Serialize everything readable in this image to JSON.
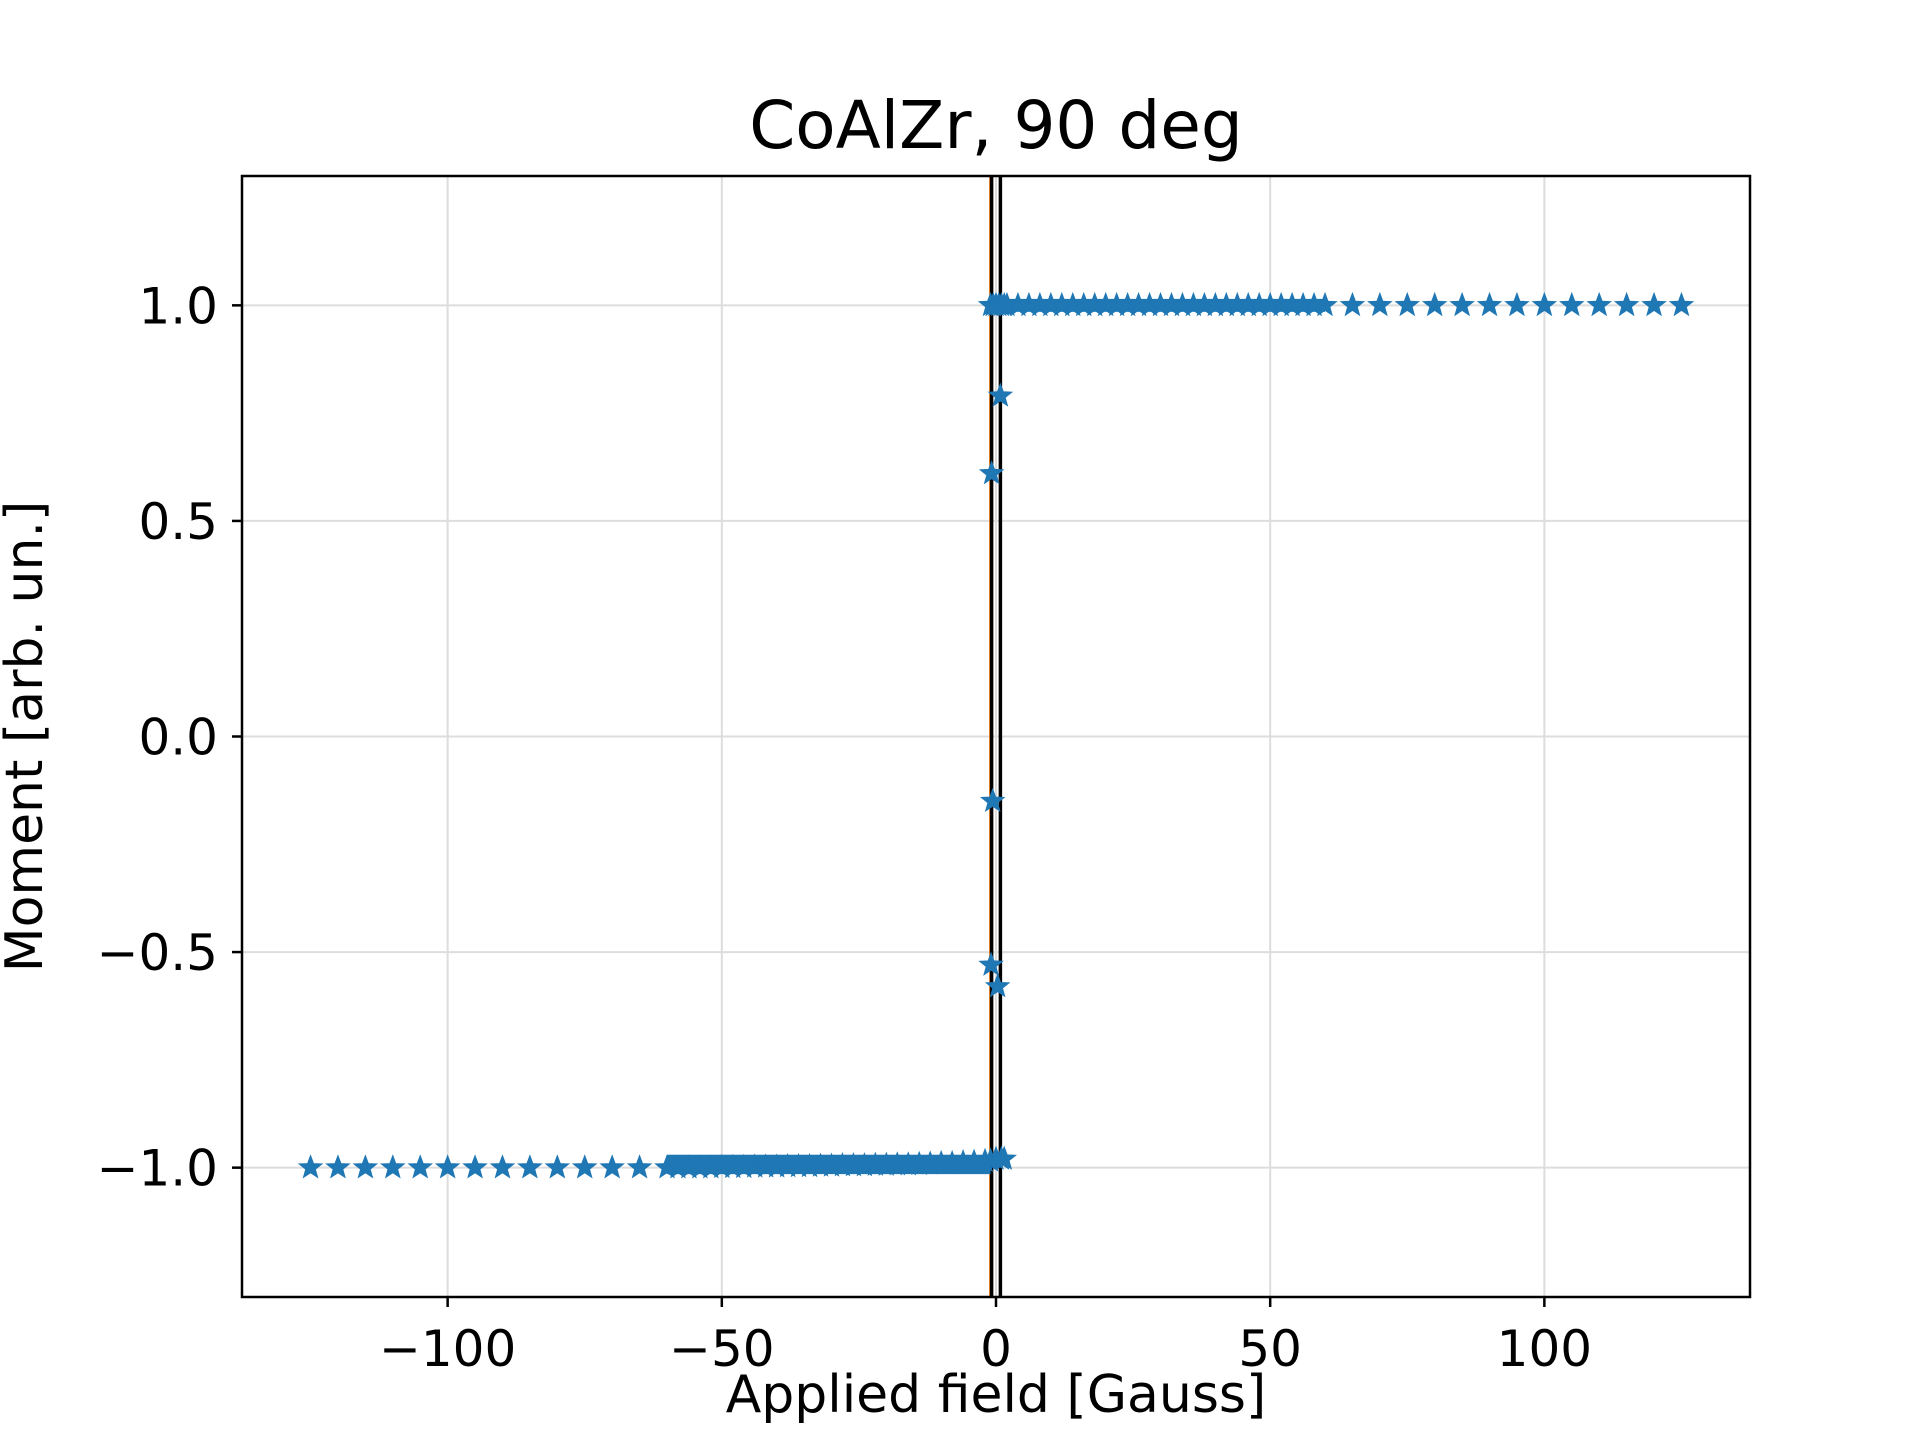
{
  "chart_data": {
    "type": "scatter",
    "title": "CoAlZr, 90 deg",
    "xlabel": "Applied field [Gauss]",
    "ylabel": "Moment [arb. un.]",
    "xlim": [
      -137.5,
      137.5
    ],
    "ylim": [
      -1.3,
      1.3
    ],
    "xticks": [
      -100,
      -50,
      0,
      50,
      100
    ],
    "xtick_labels": [
      "−100",
      "−50",
      "0",
      "50",
      "100"
    ],
    "yticks": [
      -1.0,
      -0.5,
      0.0,
      0.5,
      1.0
    ],
    "ytick_labels": [
      "−1.0",
      "−0.5",
      "0.0",
      "0.5",
      "1.0"
    ],
    "grid": true,
    "marker": "star",
    "colors": {
      "series": "#1f77b4",
      "vline_main": "#000000",
      "vline_accent": "#ff7f0e"
    },
    "vertical_lines_x": [
      -0.8,
      0.8
    ],
    "series": [
      {
        "x": [
          -125,
          -120,
          -115,
          -110,
          -105,
          -100,
          -95,
          -90,
          -85,
          -80,
          -75,
          -70,
          -65,
          -60,
          -58,
          -56,
          -54,
          -52,
          -50,
          -48,
          -46,
          -44,
          -42,
          -40,
          -38,
          -36,
          -34,
          -32,
          -30,
          -28,
          -26,
          -24,
          -22,
          -20,
          -18,
          -16,
          -14,
          -12,
          -10,
          -8,
          -6,
          -4,
          -2,
          -1,
          0,
          1,
          1.5,
          -1,
          -0.5,
          0,
          0.5,
          1,
          1.5,
          2,
          4,
          6,
          8,
          10,
          12,
          14,
          16,
          18,
          20,
          22,
          24,
          26,
          28,
          30,
          32,
          34,
          36,
          38,
          40,
          42,
          44,
          46,
          48,
          50,
          52,
          54,
          56,
          58,
          60,
          65,
          70,
          75,
          80,
          85,
          90,
          95,
          100,
          105,
          110,
          115,
          120,
          125,
          -0.8,
          0.8,
          -0.6,
          -0.9,
          0.3
        ],
        "y": [
          -1.0,
          -1.0,
          -1.0,
          -1.0,
          -1.0,
          -1.0,
          -1.0,
          -1.0,
          -1.0,
          -1.0,
          -1.0,
          -1.0,
          -1.0,
          -1.0,
          -1.0,
          -1.0,
          -1.0,
          -1.0,
          -0.999,
          -0.999,
          -0.999,
          -0.998,
          -0.998,
          -0.998,
          -0.997,
          -0.997,
          -0.997,
          -0.996,
          -0.996,
          -0.995,
          -0.995,
          -0.995,
          -0.994,
          -0.994,
          -0.993,
          -0.993,
          -0.992,
          -0.991,
          -0.99,
          -0.99,
          -0.988,
          -0.987,
          -0.985,
          -0.984,
          -0.98,
          -0.98,
          -0.98,
          1.0,
          1.0,
          1.0,
          1.0,
          1.0,
          1.0,
          1.0,
          1.0,
          1.0,
          1.0,
          1.0,
          1.0,
          1.0,
          1.0,
          1.0,
          1.0,
          1.0,
          1.0,
          1.0,
          1.0,
          1.0,
          1.0,
          1.0,
          1.0,
          1.0,
          1.0,
          1.0,
          1.0,
          1.0,
          1.0,
          1.0,
          1.0,
          1.0,
          1.0,
          1.0,
          1.0,
          1.0,
          1.0,
          1.0,
          1.0,
          1.0,
          1.0,
          1.0,
          1.0,
          1.0,
          1.0,
          1.0,
          1.0,
          1.0,
          0.61,
          0.79,
          -0.15,
          -0.53,
          -0.58
        ]
      }
    ]
  }
}
